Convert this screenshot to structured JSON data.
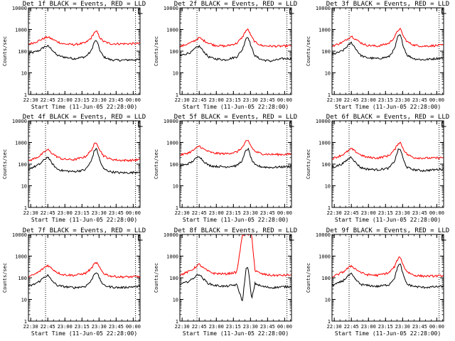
{
  "figure": {
    "title_template": "BLACK = Events, RED = LLD",
    "xlabel": "Start Time (11-Jun-05 22:28:00)",
    "ylabel": "Counts/sec",
    "x_tick_labels": [
      "22:30",
      "22:45",
      "23:00",
      "23:15",
      "23:30",
      "23:45",
      "00:00"
    ],
    "y_tick_labels": [
      "1",
      "10",
      "100",
      "1000",
      "10000"
    ],
    "colors": {
      "events": "#000000",
      "lld": "#ff0000",
      "markers": "#000000"
    }
  },
  "chart_data": [
    {
      "type": "line",
      "title": "Det 1f BLACK = Events, RED = LLD",
      "xlabel": "Start Time (11-Jun-05 22:28:00)",
      "ylabel": "Counts/sec",
      "xlim_minutes": [
        0,
        98
      ],
      "ylim": [
        1,
        10000
      ],
      "yscale": "log",
      "vertical_markers_minutes": [
        15,
        94
      ],
      "series": [
        {
          "name": "Events",
          "color": "#000000",
          "x": [
            0,
            5,
            10,
            14,
            17,
            20,
            25,
            30,
            40,
            50,
            55,
            58,
            60,
            63,
            66,
            72,
            80,
            90,
            98
          ],
          "values": [
            75,
            90,
            110,
            160,
            170,
            130,
            65,
            55,
            45,
            55,
            100,
            280,
            300,
            100,
            55,
            40,
            38,
            40,
            40
          ]
        },
        {
          "name": "LLD",
          "color": "#ff0000",
          "x": [
            0,
            5,
            10,
            14,
            17,
            20,
            25,
            30,
            40,
            50,
            55,
            58,
            60,
            63,
            66,
            72,
            80,
            90,
            98
          ],
          "values": [
            210,
            250,
            320,
            400,
            450,
            380,
            280,
            220,
            200,
            240,
            400,
            750,
            800,
            400,
            280,
            220,
            220,
            220,
            230
          ]
        }
      ]
    },
    {
      "type": "line",
      "title": "Det 2f BLACK = Events, RED = LLD",
      "xlabel": "Start Time (11-Jun-05 22:28:00)",
      "ylabel": "Counts/sec",
      "xlim_minutes": [
        0,
        98
      ],
      "ylim": [
        1,
        10000
      ],
      "yscale": "log",
      "vertical_markers_minutes": [
        15,
        94
      ],
      "series": [
        {
          "name": "Events",
          "color": "#000000",
          "x": [
            0,
            5,
            10,
            14,
            17,
            20,
            25,
            30,
            40,
            50,
            55,
            58,
            60,
            63,
            66,
            72,
            80,
            90,
            98
          ],
          "values": [
            60,
            75,
            90,
            140,
            170,
            110,
            55,
            45,
            40,
            55,
            120,
            400,
            450,
            140,
            60,
            40,
            35,
            45,
            45
          ]
        },
        {
          "name": "LLD",
          "color": "#ff0000",
          "x": [
            0,
            5,
            10,
            14,
            17,
            20,
            25,
            30,
            40,
            50,
            55,
            58,
            60,
            63,
            66,
            72,
            80,
            90,
            98
          ],
          "values": [
            160,
            200,
            250,
            330,
            420,
            330,
            240,
            190,
            170,
            230,
            450,
            900,
            1000,
            450,
            260,
            180,
            170,
            170,
            180
          ]
        }
      ]
    },
    {
      "type": "line",
      "title": "Det 3f BLACK = Events, RED = LLD",
      "xlabel": "Start Time (11-Jun-05 22:28:00)",
      "ylabel": "Counts/sec",
      "xlim_minutes": [
        0,
        98
      ],
      "ylim": [
        1,
        10000
      ],
      "yscale": "log",
      "vertical_markers_minutes": [
        15,
        94
      ],
      "series": [
        {
          "name": "Events",
          "color": "#000000",
          "x": [
            0,
            5,
            10,
            14,
            17,
            20,
            25,
            30,
            40,
            50,
            55,
            58,
            60,
            63,
            66,
            72,
            80,
            90,
            98
          ],
          "values": [
            70,
            85,
            110,
            180,
            250,
            150,
            65,
            50,
            45,
            55,
            130,
            500,
            550,
            150,
            65,
            45,
            40,
            45,
            50
          ]
        },
        {
          "name": "LLD",
          "color": "#ff0000",
          "x": [
            0,
            5,
            10,
            14,
            17,
            20,
            25,
            30,
            40,
            50,
            55,
            58,
            60,
            63,
            66,
            72,
            80,
            90,
            98
          ],
          "values": [
            170,
            210,
            270,
            380,
            500,
            380,
            250,
            190,
            170,
            230,
            450,
            950,
            1050,
            450,
            270,
            190,
            170,
            180,
            190
          ]
        }
      ]
    },
    {
      "type": "line",
      "title": "Det 4f BLACK = Events, RED = LLD",
      "xlabel": "Start Time (11-Jun-05 22:28:00)",
      "ylabel": "Counts/sec",
      "xlim_minutes": [
        0,
        98
      ],
      "ylim": [
        1,
        10000
      ],
      "yscale": "log",
      "vertical_markers_minutes": [
        15,
        94
      ],
      "series": [
        {
          "name": "Events",
          "color": "#000000",
          "x": [
            0,
            5,
            10,
            14,
            17,
            20,
            25,
            30,
            40,
            50,
            55,
            58,
            60,
            63,
            66,
            72,
            80,
            90,
            98
          ],
          "values": [
            60,
            75,
            100,
            160,
            220,
            120,
            60,
            50,
            45,
            55,
            130,
            450,
            500,
            130,
            60,
            45,
            40,
            40,
            45
          ]
        },
        {
          "name": "LLD",
          "color": "#ff0000",
          "x": [
            0,
            5,
            10,
            14,
            17,
            20,
            25,
            30,
            40,
            50,
            55,
            58,
            60,
            63,
            66,
            72,
            80,
            90,
            98
          ],
          "values": [
            140,
            180,
            240,
            360,
            480,
            340,
            220,
            170,
            160,
            220,
            420,
            850,
            950,
            420,
            240,
            170,
            150,
            150,
            160
          ]
        }
      ]
    },
    {
      "type": "line",
      "title": "Det 5f BLACK = Events, RED = LLD",
      "xlabel": "Start Time (11-Jun-05 22:28:00)",
      "ylabel": "Counts/sec",
      "xlim_minutes": [
        0,
        98
      ],
      "ylim": [
        1,
        10000
      ],
      "yscale": "log",
      "vertical_markers_minutes": [
        15,
        94
      ],
      "series": [
        {
          "name": "Events",
          "color": "#000000",
          "x": [
            0,
            5,
            10,
            14,
            17,
            20,
            25,
            30,
            40,
            50,
            55,
            58,
            60,
            63,
            66,
            72,
            80,
            90,
            98
          ],
          "values": [
            80,
            95,
            120,
            180,
            240,
            150,
            90,
            80,
            75,
            85,
            150,
            450,
            500,
            160,
            90,
            75,
            70,
            75,
            80
          ]
        },
        {
          "name": "LLD",
          "color": "#ff0000",
          "x": [
            0,
            5,
            10,
            14,
            17,
            20,
            25,
            30,
            40,
            50,
            55,
            58,
            60,
            63,
            66,
            72,
            80,
            90,
            98
          ],
          "values": [
            260,
            300,
            380,
            520,
            700,
            520,
            380,
            320,
            300,
            360,
            600,
            1100,
            1200,
            600,
            380,
            300,
            280,
            280,
            290
          ]
        }
      ]
    },
    {
      "type": "line",
      "title": "Det 6f BLACK = Events, RED = LLD",
      "xlabel": "Start Time (11-Jun-05 22:28:00)",
      "ylabel": "Counts/sec",
      "xlim_minutes": [
        0,
        98
      ],
      "ylim": [
        1,
        10000
      ],
      "yscale": "log",
      "vertical_markers_minutes": [
        15,
        94
      ],
      "series": [
        {
          "name": "Events",
          "color": "#000000",
          "x": [
            0,
            5,
            10,
            14,
            17,
            20,
            25,
            30,
            40,
            50,
            55,
            58,
            60,
            63,
            66,
            72,
            80,
            90,
            98
          ],
          "values": [
            70,
            85,
            110,
            170,
            220,
            130,
            70,
            60,
            55,
            65,
            140,
            450,
            500,
            140,
            70,
            55,
            50,
            55,
            60
          ]
        },
        {
          "name": "LLD",
          "color": "#ff0000",
          "x": [
            0,
            5,
            10,
            14,
            17,
            20,
            25,
            30,
            40,
            50,
            55,
            58,
            60,
            63,
            66,
            72,
            80,
            90,
            98
          ],
          "values": [
            180,
            220,
            280,
            400,
            520,
            400,
            270,
            210,
            190,
            250,
            460,
            900,
            1000,
            460,
            280,
            200,
            190,
            190,
            200
          ]
        }
      ]
    },
    {
      "type": "line",
      "title": "Det 7f BLACK = Events, RED = LLD",
      "xlabel": "Start Time (11-Jun-05 22:28:00)",
      "ylabel": "Counts/sec",
      "xlim_minutes": [
        0,
        98
      ],
      "ylim": [
        1,
        10000
      ],
      "yscale": "log",
      "vertical_markers_minutes": [
        15,
        94
      ],
      "series": [
        {
          "name": "Events",
          "color": "#000000",
          "x": [
            0,
            5,
            10,
            14,
            17,
            20,
            25,
            30,
            40,
            50,
            55,
            58,
            60,
            63,
            66,
            72,
            80,
            90,
            98
          ],
          "values": [
            40,
            50,
            70,
            110,
            130,
            80,
            45,
            40,
            35,
            40,
            70,
            160,
            180,
            80,
            45,
            38,
            35,
            38,
            40
          ]
        },
        {
          "name": "LLD",
          "color": "#ff0000",
          "x": [
            0,
            5,
            10,
            14,
            17,
            20,
            25,
            30,
            40,
            50,
            55,
            58,
            60,
            63,
            66,
            72,
            80,
            90,
            98
          ],
          "values": [
            110,
            140,
            200,
            300,
            380,
            280,
            180,
            140,
            130,
            160,
            260,
            450,
            500,
            260,
            160,
            120,
            110,
            110,
            115
          ]
        }
      ]
    },
    {
      "type": "line",
      "title": "Det 8f BLACK = Events, RED = LLD",
      "xlabel": "Start Time (11-Jun-05 22:28:00)",
      "ylabel": "Counts/sec",
      "xlim_minutes": [
        0,
        98
      ],
      "ylim": [
        1,
        10000
      ],
      "yscale": "log",
      "vertical_markers_minutes": [
        15,
        94
      ],
      "series": [
        {
          "name": "Events",
          "color": "#000000",
          "x": [
            0,
            5,
            10,
            14,
            17,
            20,
            25,
            30,
            40,
            50,
            55,
            58,
            60,
            63,
            66,
            72,
            80,
            90,
            98
          ],
          "values": [
            50,
            60,
            80,
            120,
            150,
            95,
            55,
            45,
            40,
            48,
            8,
            260,
            280,
            10,
            55,
            40,
            35,
            38,
            40
          ]
        },
        {
          "name": "LLD",
          "color": "#ff0000",
          "x": [
            0,
            5,
            10,
            14,
            17,
            20,
            25,
            30,
            40,
            50,
            55,
            58,
            60,
            63,
            66,
            72,
            80,
            90,
            98
          ],
          "values": [
            130,
            170,
            220,
            320,
            420,
            300,
            200,
            160,
            150,
            180,
            10000,
            10000,
            10000,
            10000,
            210,
            150,
            130,
            130,
            135
          ]
        }
      ]
    },
    {
      "type": "line",
      "title": "Det 9f BLACK = Events, RED = LLD",
      "xlabel": "Start Time (11-Jun-05 22:28:00)",
      "ylabel": "Counts/sec",
      "xlim_minutes": [
        0,
        98
      ],
      "ylim": [
        1,
        10000
      ],
      "yscale": "log",
      "vertical_markers_minutes": [
        15,
        94
      ],
      "series": [
        {
          "name": "Events",
          "color": "#000000",
          "x": [
            0,
            5,
            10,
            14,
            17,
            20,
            25,
            30,
            40,
            50,
            55,
            58,
            60,
            63,
            66,
            72,
            80,
            90,
            98
          ],
          "values": [
            45,
            55,
            75,
            120,
            150,
            90,
            50,
            45,
            40,
            48,
            100,
            380,
            420,
            110,
            50,
            40,
            36,
            38,
            40
          ]
        },
        {
          "name": "LLD",
          "color": "#ff0000",
          "x": [
            0,
            5,
            10,
            14,
            17,
            20,
            25,
            30,
            40,
            50,
            55,
            58,
            60,
            63,
            66,
            72,
            80,
            90,
            98
          ],
          "values": [
            110,
            140,
            190,
            280,
            360,
            270,
            180,
            140,
            130,
            170,
            330,
            800,
            900,
            330,
            190,
            130,
            120,
            120,
            125
          ]
        }
      ]
    }
  ]
}
